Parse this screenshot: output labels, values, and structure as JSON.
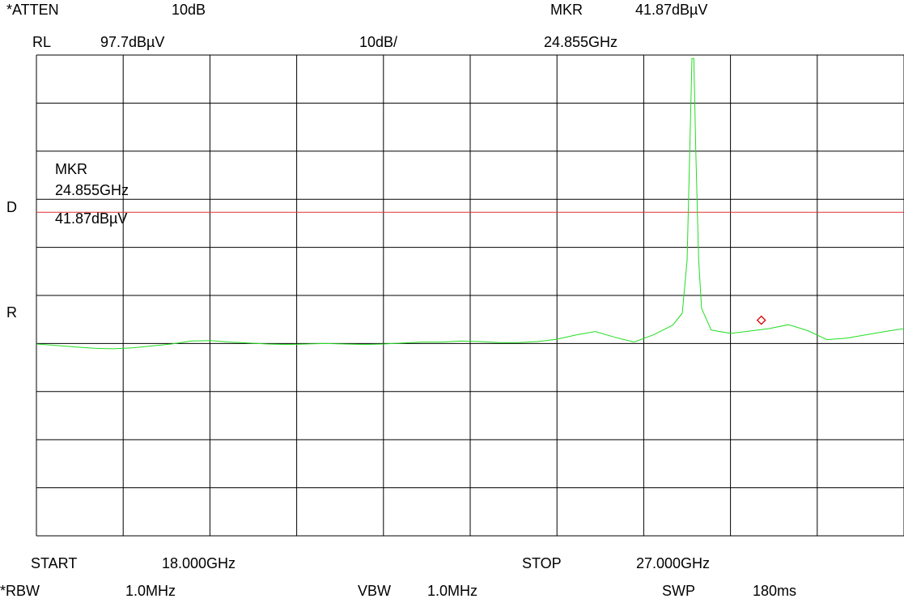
{
  "header": {
    "atten_label": "*ATTEN",
    "atten_value": "10dB",
    "rl_label": "RL",
    "rl_value": "97.7dBµV",
    "scale": "10dB/",
    "mkr_label": "MKR",
    "mkr_amplitude": "41.87dBµV",
    "mkr_frequency": "24.855GHz"
  },
  "graticule_marker": {
    "label": "MKR",
    "frequency": "24.855GHz",
    "amplitude": "41.87dBµV"
  },
  "side_labels": {
    "d": "D",
    "r": "R"
  },
  "footer": {
    "start_label": "START",
    "start_value": "18.000GHz",
    "stop_label": "STOP",
    "stop_value": "27.000GHz",
    "rbw_label": "*RBW",
    "rbw_value": "1.0MHz",
    "vbw_label": "VBW",
    "vbw_value": "1.0MHz",
    "swp_label": "SWP",
    "swp_value": "180ms"
  },
  "chart_data": {
    "type": "line",
    "xlim": [
      18.0,
      27.0
    ],
    "ylim": [
      -2.3,
      97.7
    ],
    "x_divisions": 10,
    "y_divisions": 10,
    "display_line": 65.0,
    "marker": {
      "x": 24.855,
      "y": 41.87
    },
    "series": [
      {
        "color": "#22dd22",
        "points": [
          [
            18.0,
            37.6
          ],
          [
            18.2,
            37.3
          ],
          [
            18.4,
            37.0
          ],
          [
            18.6,
            36.7
          ],
          [
            18.8,
            36.6
          ],
          [
            19.0,
            36.8
          ],
          [
            19.2,
            37.2
          ],
          [
            19.4,
            37.6
          ],
          [
            19.6,
            38.2
          ],
          [
            19.8,
            38.3
          ],
          [
            20.0,
            38.0
          ],
          [
            20.2,
            37.8
          ],
          [
            20.4,
            37.6
          ],
          [
            20.6,
            37.5
          ],
          [
            20.8,
            37.6
          ],
          [
            21.0,
            37.7
          ],
          [
            21.2,
            37.6
          ],
          [
            21.4,
            37.5
          ],
          [
            21.6,
            37.6
          ],
          [
            21.8,
            37.8
          ],
          [
            22.0,
            38.0
          ],
          [
            22.2,
            38.0
          ],
          [
            22.4,
            38.2
          ],
          [
            22.6,
            38.1
          ],
          [
            22.8,
            37.9
          ],
          [
            23.0,
            37.9
          ],
          [
            23.2,
            38.1
          ],
          [
            23.4,
            38.6
          ],
          [
            23.6,
            39.5
          ],
          [
            23.8,
            40.2
          ],
          [
            24.0,
            39.0
          ],
          [
            24.2,
            38.0
          ],
          [
            24.4,
            39.5
          ],
          [
            24.6,
            41.5
          ],
          [
            24.7,
            44.0
          ],
          [
            24.75,
            55.0
          ],
          [
            24.78,
            80.0
          ],
          [
            24.8,
            97.0
          ],
          [
            24.82,
            97.0
          ],
          [
            24.84,
            78.0
          ],
          [
            24.87,
            55.0
          ],
          [
            24.9,
            45.0
          ],
          [
            25.0,
            40.5
          ],
          [
            25.2,
            39.8
          ],
          [
            25.4,
            40.3
          ],
          [
            25.6,
            40.8
          ],
          [
            25.8,
            41.6
          ],
          [
            26.0,
            40.4
          ],
          [
            26.2,
            38.5
          ],
          [
            26.4,
            38.8
          ],
          [
            26.6,
            39.5
          ],
          [
            26.8,
            40.2
          ],
          [
            27.0,
            40.8
          ]
        ]
      }
    ]
  }
}
